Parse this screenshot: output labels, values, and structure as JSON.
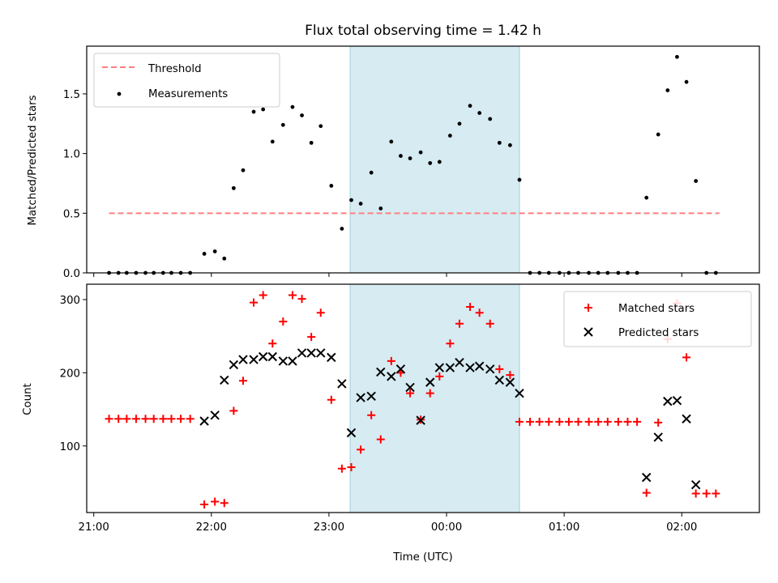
{
  "chart_data": [
    {
      "type": "scatter",
      "title": "Flux total observing time = 1.42 h",
      "xlabel": "",
      "ylabel": "Matched/Predicted stars",
      "xlim": [
        20.94,
        26.66
      ],
      "ylim": [
        0,
        1.9
      ],
      "yticks": [
        0.0,
        0.5,
        1.0,
        1.5
      ],
      "yticklabels": [
        "0.0",
        "0.5",
        "1.0",
        "1.5"
      ],
      "legend_position": "top-left",
      "shaded_span": [
        23.18,
        24.62
      ],
      "threshold": {
        "name": "Threshold",
        "value": 0.5,
        "x": [
          21.13,
          26.32
        ],
        "color": "#ff7f7f"
      },
      "series": [
        {
          "name": "Measurements",
          "color": "#000000",
          "marker": "dot",
          "points": [
            [
              21.13,
              0
            ],
            [
              21.21,
              0
            ],
            [
              21.28,
              0
            ],
            [
              21.36,
              0
            ],
            [
              21.44,
              0
            ],
            [
              21.51,
              0
            ],
            [
              21.59,
              0
            ],
            [
              21.66,
              0
            ],
            [
              21.74,
              0
            ],
            [
              21.82,
              0
            ],
            [
              21.94,
              0.16
            ],
            [
              22.03,
              0.18
            ],
            [
              22.11,
              0.12
            ],
            [
              22.19,
              0.71
            ],
            [
              22.27,
              0.86
            ],
            [
              22.36,
              1.35
            ],
            [
              22.44,
              1.37
            ],
            [
              22.52,
              1.1
            ],
            [
              22.61,
              1.24
            ],
            [
              22.69,
              1.39
            ],
            [
              22.77,
              1.32
            ],
            [
              22.85,
              1.09
            ],
            [
              22.93,
              1.23
            ],
            [
              23.02,
              0.73
            ],
            [
              23.11,
              0.37
            ],
            [
              23.19,
              0.61
            ],
            [
              23.27,
              0.58
            ],
            [
              23.36,
              0.84
            ],
            [
              23.44,
              0.54
            ],
            [
              23.53,
              1.1
            ],
            [
              23.61,
              0.98
            ],
            [
              23.69,
              0.96
            ],
            [
              23.78,
              1.01
            ],
            [
              23.86,
              0.92
            ],
            [
              23.94,
              0.93
            ],
            [
              24.03,
              1.15
            ],
            [
              24.11,
              1.25
            ],
            [
              24.2,
              1.4
            ],
            [
              24.28,
              1.34
            ],
            [
              24.37,
              1.29
            ],
            [
              24.45,
              1.09
            ],
            [
              24.54,
              1.07
            ],
            [
              24.62,
              0.78
            ],
            [
              24.71,
              0
            ],
            [
              24.79,
              0
            ],
            [
              24.87,
              0
            ],
            [
              24.96,
              0
            ],
            [
              25.04,
              0
            ],
            [
              25.12,
              0
            ],
            [
              25.21,
              0
            ],
            [
              25.29,
              0
            ],
            [
              25.37,
              0
            ],
            [
              25.46,
              0
            ],
            [
              25.54,
              0
            ],
            [
              25.62,
              0
            ],
            [
              25.7,
              0.63
            ],
            [
              25.8,
              1.16
            ],
            [
              25.88,
              1.53
            ],
            [
              25.96,
              1.81
            ],
            [
              26.04,
              1.6
            ],
            [
              26.12,
              0.77
            ],
            [
              26.21,
              0
            ],
            [
              26.29,
              0
            ]
          ]
        }
      ]
    },
    {
      "type": "scatter",
      "title": "",
      "xlabel": "Time (UTC)",
      "ylabel": "Count",
      "xlim": [
        20.94,
        26.66
      ],
      "ylim": [
        9,
        321
      ],
      "yticks": [
        100,
        200,
        300
      ],
      "yticklabels": [
        "100",
        "200",
        "300"
      ],
      "xticks": [
        21,
        22,
        23,
        24,
        25,
        26
      ],
      "xticklabels": [
        "21:00",
        "22:00",
        "23:00",
        "00:00",
        "01:00",
        "02:00"
      ],
      "legend_position": "top-right",
      "shaded_span": [
        23.18,
        24.62
      ],
      "series": [
        {
          "name": "Matched stars",
          "color": "#ff0000",
          "marker": "plus",
          "points": [
            [
              21.13,
              137
            ],
            [
              21.21,
              137
            ],
            [
              21.28,
              137
            ],
            [
              21.36,
              137
            ],
            [
              21.44,
              137
            ],
            [
              21.51,
              137
            ],
            [
              21.59,
              137
            ],
            [
              21.66,
              137
            ],
            [
              21.74,
              137
            ],
            [
              21.82,
              137
            ],
            [
              21.94,
              20
            ],
            [
              22.03,
              24
            ],
            [
              22.11,
              22
            ],
            [
              22.19,
              148
            ],
            [
              22.27,
              189
            ],
            [
              22.36,
              296
            ],
            [
              22.44,
              306
            ],
            [
              22.52,
              240
            ],
            [
              22.61,
              270
            ],
            [
              22.69,
              306
            ],
            [
              22.77,
              301
            ],
            [
              22.85,
              249
            ],
            [
              22.93,
              282
            ],
            [
              23.02,
              163
            ],
            [
              23.11,
              69
            ],
            [
              23.19,
              71
            ],
            [
              23.27,
              95
            ],
            [
              23.36,
              142
            ],
            [
              23.44,
              109
            ],
            [
              23.53,
              216
            ],
            [
              23.61,
              200
            ],
            [
              23.69,
              172
            ],
            [
              23.78,
              136
            ],
            [
              23.86,
              172
            ],
            [
              23.94,
              195
            ],
            [
              24.03,
              240
            ],
            [
              24.11,
              267
            ],
            [
              24.2,
              290
            ],
            [
              24.28,
              282
            ],
            [
              24.37,
              267
            ],
            [
              24.45,
              205
            ],
            [
              24.54,
              197
            ],
            [
              24.62,
              133
            ],
            [
              24.71,
              133
            ],
            [
              24.79,
              133
            ],
            [
              24.87,
              133
            ],
            [
              24.96,
              133
            ],
            [
              25.04,
              133
            ],
            [
              25.12,
              133
            ],
            [
              25.21,
              133
            ],
            [
              25.29,
              133
            ],
            [
              25.37,
              133
            ],
            [
              25.46,
              133
            ],
            [
              25.54,
              133
            ],
            [
              25.62,
              133
            ],
            [
              25.7,
              36
            ],
            [
              25.8,
              132
            ],
            [
              25.88,
              246
            ],
            [
              25.96,
              295
            ],
            [
              26.04,
              221
            ],
            [
              26.12,
              35
            ],
            [
              26.21,
              35
            ],
            [
              26.29,
              35
            ]
          ]
        },
        {
          "name": "Predicted stars",
          "color": "#000000",
          "marker": "x",
          "points": [
            [
              21.94,
              134
            ],
            [
              22.03,
              142
            ],
            [
              22.11,
              190
            ],
            [
              22.19,
              211
            ],
            [
              22.27,
              218
            ],
            [
              22.36,
              218
            ],
            [
              22.44,
              222
            ],
            [
              22.52,
              222
            ],
            [
              22.61,
              216
            ],
            [
              22.69,
              216
            ],
            [
              22.77,
              227
            ],
            [
              22.85,
              227
            ],
            [
              22.93,
              227
            ],
            [
              23.02,
              221
            ],
            [
              23.11,
              185
            ],
            [
              23.19,
              118
            ],
            [
              23.27,
              166
            ],
            [
              23.36,
              168
            ],
            [
              23.44,
              201
            ],
            [
              23.53,
              195
            ],
            [
              23.61,
              205
            ],
            [
              23.69,
              180
            ],
            [
              23.78,
              135
            ],
            [
              23.86,
              187
            ],
            [
              23.94,
              207
            ],
            [
              24.03,
              207
            ],
            [
              24.11,
              214
            ],
            [
              24.2,
              207
            ],
            [
              24.28,
              209
            ],
            [
              24.37,
              205
            ],
            [
              24.45,
              190
            ],
            [
              24.54,
              187
            ],
            [
              24.62,
              172
            ],
            [
              25.7,
              57
            ],
            [
              25.8,
              112
            ],
            [
              25.88,
              161
            ],
            [
              25.96,
              162
            ],
            [
              26.04,
              137
            ],
            [
              26.12,
              47
            ]
          ]
        }
      ]
    }
  ]
}
